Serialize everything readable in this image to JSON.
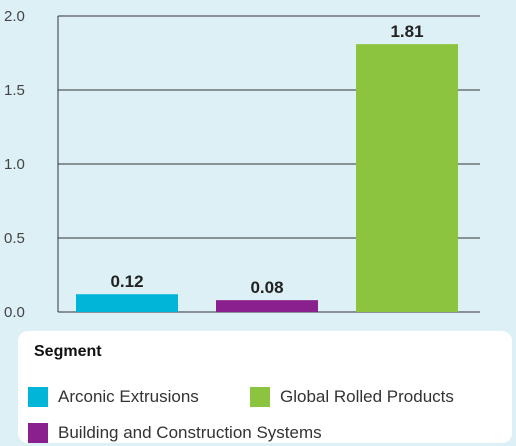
{
  "chart_data": {
    "type": "bar",
    "categories": [
      "Arconic Extrusions",
      "Building and Construction Systems",
      "Global Rolled Products"
    ],
    "values": [
      0.12,
      0.08,
      1.81
    ],
    "value_labels": [
      "0.12",
      "0.08",
      "1.81"
    ],
    "colors": [
      "#00b5d8",
      "#8a1f8e",
      "#8cc43f"
    ],
    "ylim": [
      0,
      2
    ],
    "yticks": [
      "0.0",
      "0.5",
      "1.0",
      "1.5",
      "2.0"
    ],
    "grid": true,
    "legend_placement": "bottom",
    "title": "",
    "xlabel": "",
    "ylabel": ""
  },
  "legend": {
    "title": "Segment",
    "items": [
      {
        "label": "Arconic Extrusions",
        "color": "#00b5d8"
      },
      {
        "label": "Global Rolled Products",
        "color": "#8cc43f"
      },
      {
        "label": "Building and Construction Systems",
        "color": "#8a1f8e"
      }
    ]
  }
}
